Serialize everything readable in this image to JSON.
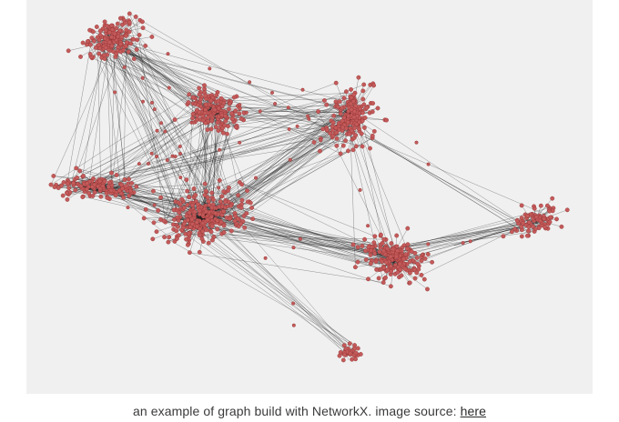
{
  "figure": {
    "background": "#f0f0f0",
    "node_color": "#c45a5a",
    "node_stroke": "#8f3030",
    "edge_color": "#1a1a1a"
  },
  "caption": {
    "text": "an example of graph build with NetworkX. image source:",
    "link_text": "here"
  }
}
